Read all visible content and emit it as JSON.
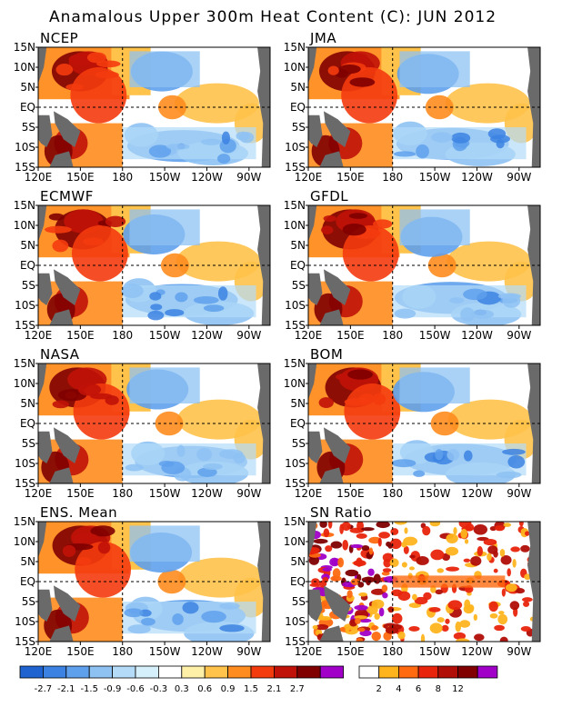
{
  "figure": {
    "title": "Anamalous Upper 300m Heat Content (C): JUN 2012"
  },
  "axes": {
    "x_ticks": [
      "120E",
      "150E",
      "180",
      "150W",
      "120W",
      "90W"
    ],
    "y_ticks": [
      "15N",
      "10N",
      "5N",
      "EQ",
      "5S",
      "10S",
      "15S"
    ]
  },
  "chart_data": {
    "type": "heatmap",
    "panels": [
      {
        "title": "NCEP"
      },
      {
        "title": "JMA"
      },
      {
        "title": "ECMWF"
      },
      {
        "title": "GFDL"
      },
      {
        "title": "NASA"
      },
      {
        "title": "BOM"
      },
      {
        "title": "ENS. Mean"
      },
      {
        "title": "SN Ratio"
      }
    ],
    "anomaly_colorbar": {
      "labels": [
        "-2.7",
        "-2.1",
        "-1.5",
        "-0.9",
        "-0.6",
        "-0.3",
        "0.3",
        "0.6",
        "0.9",
        "1.5",
        "2.1",
        "2.7"
      ],
      "colors": [
        "#1f63d0",
        "#3c82e2",
        "#5fa0ec",
        "#8ec2f3",
        "#b4dcf8",
        "#d6f0fb",
        "#ffffff",
        "#fff0a8",
        "#ffc24a",
        "#ff8c1e",
        "#f43b0e",
        "#c01208",
        "#800000",
        "#a000c8"
      ]
    },
    "sn_colorbar": {
      "labels": [
        "2",
        "4",
        "6",
        "8",
        "12"
      ],
      "colors": [
        "#ffffff",
        "#ffb41e",
        "#ff6a10",
        "#e8240c",
        "#b00e06",
        "#800000",
        "#a000c8"
      ]
    }
  }
}
